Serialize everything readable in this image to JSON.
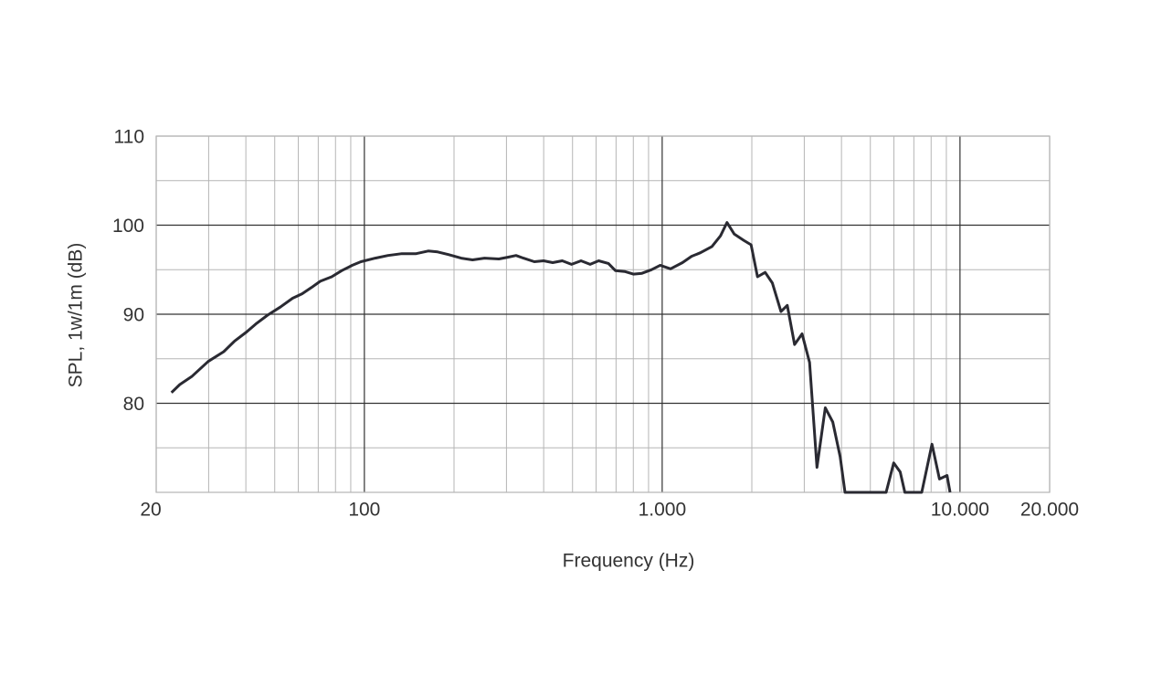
{
  "chart_data": {
    "type": "line",
    "xscale": "log",
    "grid": true,
    "color": "#2a2a32",
    "xlabel": "Frequency (Hz)",
    "ylabel": "SPL, 1w/1m (dB)",
    "xlim": [
      20,
      20000
    ],
    "ylim": [
      70,
      110
    ],
    "xticks": [
      20,
      100,
      {
        "value": 1000,
        "label": "1.000"
      },
      {
        "value": 10000,
        "label": "10.000"
      },
      {
        "value": 20000,
        "label": "20.000"
      }
    ],
    "yticks": [
      80,
      90,
      100,
      110
    ],
    "x": [
      22.5,
      24,
      26.3,
      29.9,
      33.7,
      36.7,
      40.2,
      43.2,
      47.3,
      52.2,
      57.4,
      61.8,
      66.4,
      71.1,
      77.7,
      84,
      91.1,
      97.4,
      108.8,
      120,
      133.6,
      149.2,
      163.8,
      176.3,
      191.6,
      211.4,
      230.8,
      253.2,
      283,
      303,
      323,
      342,
      372,
      400,
      429,
      462,
      496,
      534,
      573,
      612,
      660,
      696,
      748,
      800,
      855,
      920,
      985,
      1067,
      1170,
      1255,
      1344,
      1469,
      1570,
      1651,
      1746,
      1878,
      1989,
      2090,
      2217,
      2345,
      2505,
      2630,
      2784,
      2950,
      3125,
      3310,
      3530,
      3740,
      3960,
      4110,
      5650,
      5990,
      6300,
      6530,
      7440,
      8050,
      8530,
      9050,
      9260
    ],
    "values": [
      81.2,
      82.1,
      83.0,
      84.7,
      85.8,
      87.0,
      88.0,
      88.9,
      89.9,
      90.8,
      91.8,
      92.3,
      93.0,
      93.7,
      94.2,
      94.9,
      95.5,
      95.9,
      96.3,
      96.6,
      96.8,
      96.8,
      97.1,
      97.0,
      96.7,
      96.3,
      96.1,
      96.3,
      96.2,
      96.4,
      96.6,
      96.3,
      95.9,
      96.0,
      95.8,
      96.0,
      95.6,
      96.0,
      95.6,
      96.0,
      95.7,
      94.9,
      94.8,
      94.5,
      94.6,
      95.0,
      95.5,
      95.1,
      95.8,
      96.5,
      96.9,
      97.6,
      98.8,
      100.3,
      99.0,
      98.3,
      97.8,
      94.2,
      94.7,
      93.5,
      90.3,
      91.0,
      86.6,
      87.8,
      84.6,
      72.8,
      79.5,
      77.9,
      74.0,
      70,
      70,
      73.3,
      72.3,
      70,
      70,
      75.4,
      71.5,
      71.9,
      70
    ]
  }
}
